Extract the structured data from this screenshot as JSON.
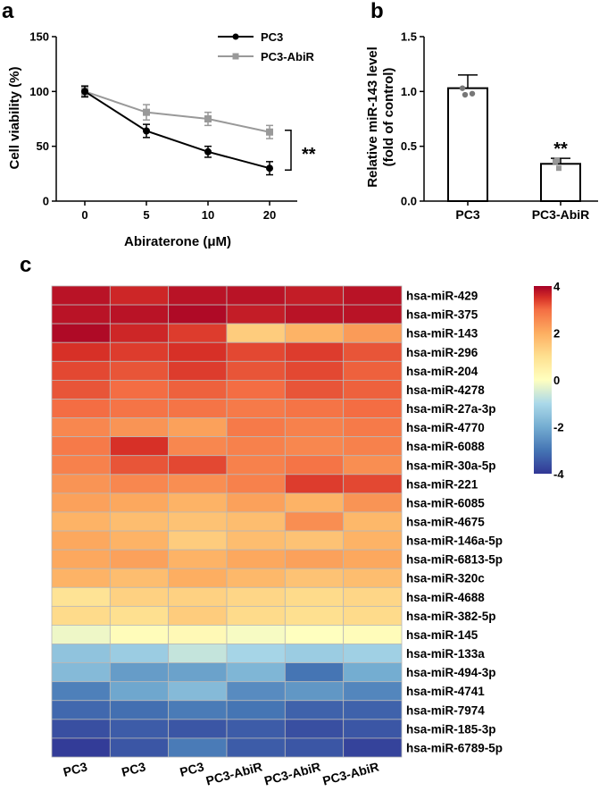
{
  "panels": {
    "a": "a",
    "b": "b",
    "c": "c"
  },
  "chart_data": [
    {
      "id": "a",
      "type": "line",
      "x": [
        0,
        5,
        10,
        20
      ],
      "x_tick_labels": [
        "0",
        "5",
        "10",
        "20"
      ],
      "y_ticks": [
        0,
        50,
        100,
        150
      ],
      "y_tick_labels": [
        "0",
        "50",
        "100",
        "150"
      ],
      "ylim": [
        0,
        150
      ],
      "xlabel": "Abiraterone (μM)",
      "ylabel": "Cell viability (%)",
      "series": [
        {
          "name": "PC3",
          "values": [
            100,
            64,
            45,
            30
          ],
          "errors": [
            5,
            6,
            5,
            6
          ],
          "color": "#000000"
        },
        {
          "name": "PC3-AbiR",
          "values": [
            100,
            81,
            75,
            63
          ],
          "errors": [
            4,
            7,
            6,
            6
          ],
          "color": "#999999"
        }
      ],
      "significance": "**",
      "legend_position": "top-right"
    },
    {
      "id": "b",
      "type": "bar",
      "categories": [
        "PC3",
        "PC3-AbiR"
      ],
      "values": [
        1.03,
        0.34
      ],
      "errors": [
        0.12,
        0.05
      ],
      "points": [
        [
          1.03,
          0.98,
          0.97
        ],
        [
          0.37,
          0.3,
          0.36
        ]
      ],
      "point_colors": [
        "#777777",
        "#999999"
      ],
      "y_ticks": [
        0.0,
        0.5,
        1.0,
        1.5
      ],
      "y_tick_labels": [
        "0.0",
        "0.5",
        "1.0",
        "1.5"
      ],
      "ylim": [
        0,
        1.5
      ],
      "ylabel_line1": "Relative miR-143 level",
      "ylabel_line2": "(fold of control)",
      "significance": [
        "",
        "**"
      ]
    },
    {
      "id": "c",
      "type": "heatmap",
      "columns": [
        "PC3",
        "PC3",
        "PC3",
        "PC3-AbiR",
        "PC3-AbiR",
        "PC3-AbiR"
      ],
      "rows": [
        "hsa-miR-429",
        "hsa-miR-375",
        "hsa-miR-143",
        "hsa-miR-296",
        "hsa-miR-204",
        "hsa-miR-4278",
        "hsa-miR-27a-3p",
        "hsa-miR-4770",
        "hsa-miR-6088",
        "hsa-miR-30a-5p",
        "hsa-miR-221",
        "hsa-miR-6085",
        "hsa-miR-4675",
        "hsa-miR-146a-5p",
        "hsa-miR-6813-5p",
        "hsa-miR-320c",
        "hsa-miR-4688",
        "hsa-miR-382-5p",
        "hsa-miR-145",
        "hsa-miR-133a",
        "hsa-miR-494-3p",
        "hsa-miR-4741",
        "hsa-miR-7974",
        "hsa-miR-185-3p",
        "hsa-miR-6789-5p"
      ],
      "values": [
        [
          3.8,
          3.6,
          3.8,
          3.8,
          3.7,
          3.8
        ],
        [
          3.8,
          3.8,
          3.9,
          3.7,
          3.8,
          3.8
        ],
        [
          3.9,
          3.6,
          3.4,
          1.4,
          1.9,
          2.3
        ],
        [
          3.5,
          3.4,
          3.5,
          3.3,
          3.4,
          3.2
        ],
        [
          3.3,
          3.2,
          3.4,
          3.2,
          3.3,
          3.1
        ],
        [
          3.2,
          3.0,
          3.1,
          3.0,
          3.2,
          3.1
        ],
        [
          3.0,
          2.9,
          2.9,
          2.8,
          2.9,
          3.0
        ],
        [
          2.6,
          2.4,
          2.2,
          2.8,
          2.7,
          2.8
        ],
        [
          2.8,
          3.5,
          2.6,
          2.7,
          2.6,
          2.7
        ],
        [
          2.7,
          3.2,
          3.3,
          2.7,
          2.9,
          2.5
        ],
        [
          2.4,
          2.6,
          2.5,
          2.7,
          3.4,
          3.3
        ],
        [
          2.2,
          2.1,
          1.9,
          2.2,
          1.9,
          2.4
        ],
        [
          1.9,
          1.7,
          1.6,
          1.7,
          2.5,
          1.8
        ],
        [
          2.1,
          1.9,
          1.4,
          1.7,
          1.6,
          1.9
        ],
        [
          2.1,
          2.2,
          1.9,
          2.1,
          2.2,
          2.1
        ],
        [
          1.9,
          1.7,
          2.0,
          1.8,
          1.6,
          1.7
        ],
        [
          0.9,
          1.3,
          1.3,
          1.2,
          1.1,
          1.2
        ],
        [
          1.1,
          1.0,
          1.4,
          1.1,
          1.0,
          1.1
        ],
        [
          -0.2,
          0.1,
          0.2,
          -0.1,
          0.0,
          0.1
        ],
        [
          -1.5,
          -1.3,
          -0.7,
          -1.1,
          -1.3,
          -1.2
        ],
        [
          -1.7,
          -2.3,
          -2.2,
          -1.8,
          -3.0,
          -2.0
        ],
        [
          -2.8,
          -2.1,
          -1.7,
          -2.6,
          -2.4,
          -2.7
        ],
        [
          -3.2,
          -3.1,
          -2.9,
          -3.0,
          -3.3,
          -3.3
        ],
        [
          -3.6,
          -3.4,
          -3.5,
          -3.4,
          -3.6,
          -3.5
        ],
        [
          -3.9,
          -3.5,
          -2.9,
          -3.4,
          -3.5,
          -3.8
        ]
      ],
      "colorbar": {
        "min": -4,
        "max": 4,
        "ticks": [
          4,
          2,
          0,
          -2,
          -4
        ],
        "tick_labels": [
          "4",
          "2",
          "0",
          "-2",
          "-4"
        ]
      }
    }
  ]
}
